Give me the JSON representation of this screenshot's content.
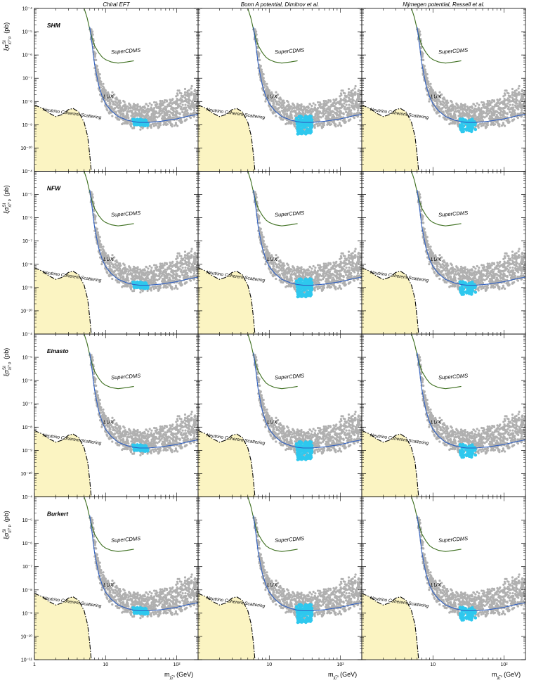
{
  "chart_data": {
    "type": "scatter",
    "columns": [
      "Chiral EFT",
      "Bonn A potential, Dimitrov et al.",
      "Nijmegen potential, Ressell et al."
    ],
    "rows": [
      "SHM",
      "NFW",
      "Einasto",
      "Burkert"
    ],
    "ylabel_main": "ξσ",
    "ylabel_sup": "SI",
    "ylabel_sub": "χ̃₁⁰ p",
    "ylabel_unit": "(pb)",
    "xlabel_main": "m",
    "xlabel_sub": "χ̃₁⁰",
    "xlabel_unit": "(GeV)",
    "x_scale": "log",
    "y_scale": "log",
    "xlim": [
      1,
      200
    ],
    "ylim_exponent": [
      -11,
      -4
    ],
    "x_ticks": [
      {
        "value": 1,
        "label": "1"
      },
      {
        "value": 10,
        "label": "10"
      },
      {
        "value": 100,
        "label": "10²"
      }
    ],
    "y_tick_exponents": [
      -11,
      -10,
      -9,
      -8,
      -7,
      -6,
      -5,
      -4
    ],
    "y_tick_labels_visible": [
      "10⁻⁴",
      "10⁻⁵",
      "10⁻⁶",
      "10⁻⁷",
      "10⁻⁸",
      "10⁻⁹",
      "10⁻¹⁰",
      "10⁻¹¹"
    ],
    "curves": {
      "superCDMS": {
        "label": "SuperCDMS",
        "color": "#3c6e1e",
        "points": [
          [
            5.0,
            -4.0
          ],
          [
            5.5,
            -4.4
          ],
          [
            6.0,
            -4.9
          ],
          [
            6.5,
            -5.3
          ],
          [
            7,
            -5.6
          ],
          [
            8,
            -5.9
          ],
          [
            9,
            -6.1
          ],
          [
            10,
            -6.2
          ],
          [
            12,
            -6.3
          ],
          [
            15,
            -6.35
          ],
          [
            20,
            -6.3
          ],
          [
            25,
            -6.25
          ]
        ]
      },
      "lux": {
        "label": "LUX",
        "color": "#3060c0",
        "points": [
          [
            6.0,
            -4.8
          ],
          [
            6.5,
            -5.6
          ],
          [
            7.0,
            -6.4
          ],
          [
            8.0,
            -7.3
          ],
          [
            9.0,
            -7.8
          ],
          [
            10,
            -8.1
          ],
          [
            12,
            -8.4
          ],
          [
            15,
            -8.65
          ],
          [
            20,
            -8.8
          ],
          [
            25,
            -8.87
          ],
          [
            30,
            -8.9
          ],
          [
            40,
            -8.9
          ],
          [
            60,
            -8.85
          ],
          [
            100,
            -8.75
          ],
          [
            150,
            -8.62
          ],
          [
            200,
            -8.55
          ]
        ]
      },
      "neutrino": {
        "label": "Neutrino Coherent Scattering",
        "color": "#000000",
        "fill": "#fbf4c2",
        "points": [
          [
            1.0,
            -8.15
          ],
          [
            1.3,
            -8.3
          ],
          [
            1.6,
            -8.5
          ],
          [
            2.0,
            -8.65
          ],
          [
            2.5,
            -8.55
          ],
          [
            3.0,
            -8.35
          ],
          [
            3.5,
            -8.3
          ],
          [
            4.2,
            -8.45
          ],
          [
            5.0,
            -8.9
          ],
          [
            5.6,
            -9.5
          ],
          [
            6.0,
            -10.3
          ],
          [
            6.3,
            -11.0
          ]
        ]
      }
    },
    "neutralino_cloud": {
      "color": "#b0b0b0",
      "x_range": [
        5.5,
        200
      ],
      "y_exponent_range": [
        -9.2,
        -6.2
      ]
    },
    "highlight_points": {
      "color": "#2ec8ee",
      "x_range": [
        24,
        40
      ],
      "y_exponent_range_per_column": [
        [
          -9.05,
          -8.75
        ],
        [
          -9.4,
          -8.6
        ],
        [
          -9.3,
          -8.75
        ]
      ]
    }
  }
}
